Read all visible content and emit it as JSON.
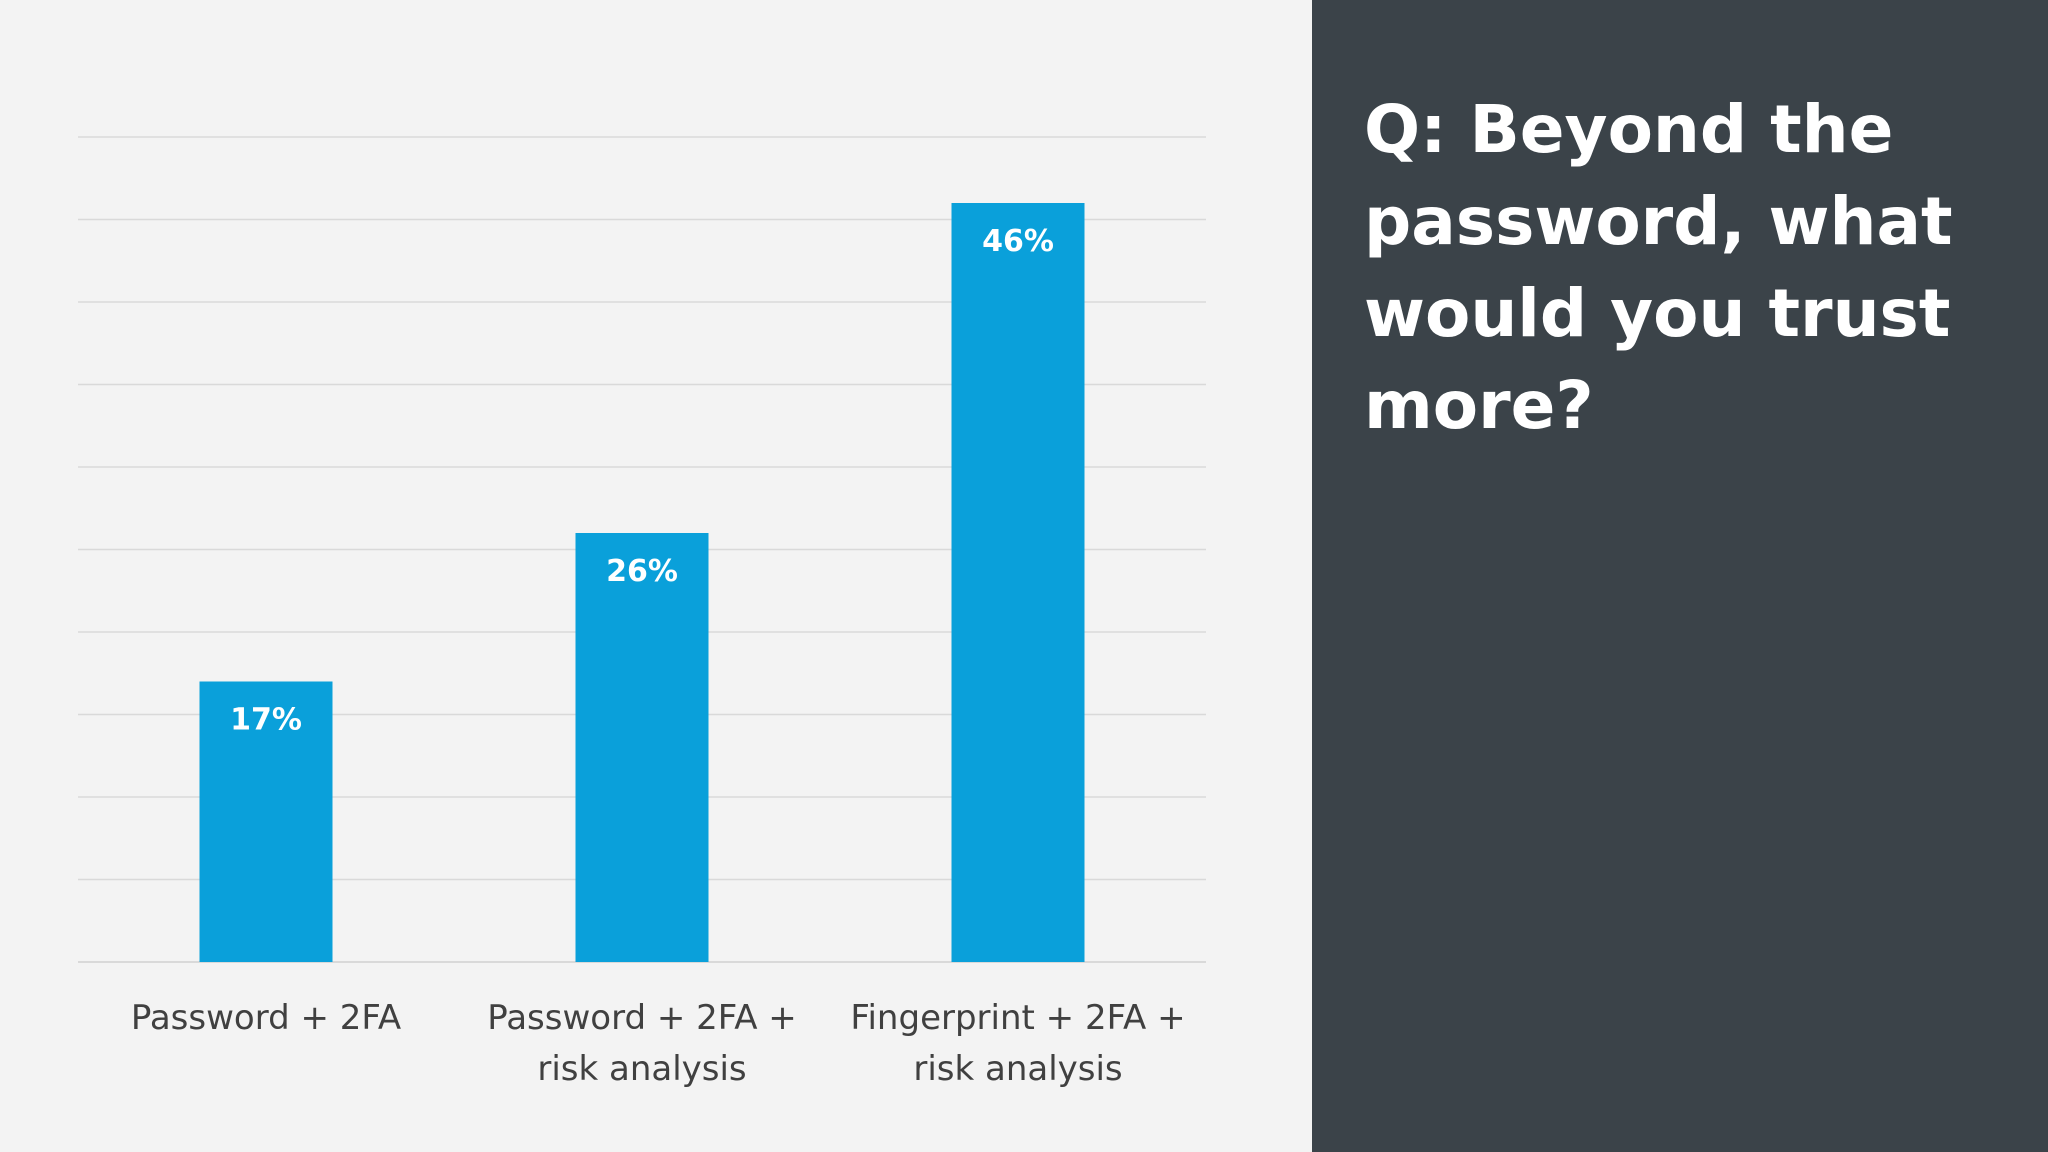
{
  "question": {
    "lines": [
      "Q: Beyond the",
      "password, what",
      "would you trust",
      "more?"
    ]
  },
  "colors": {
    "bar": "#0aa0da",
    "chart_background": "#f3f3f3",
    "panel_background": "#3b4349",
    "gridline": "#d9d9d9",
    "category_label": "#404040",
    "data_label": "#ffffff",
    "question_text": "#ffffff"
  },
  "chart_data": {
    "type": "bar",
    "title": "",
    "xlabel": "",
    "ylabel": "",
    "ylim": [
      0,
      50
    ],
    "grid": true,
    "gridline_step": 5,
    "legend": "none",
    "categories": [
      [
        "Password + 2FA"
      ],
      [
        "Password + 2FA  +",
        "risk analysis"
      ],
      [
        "Fingerprint + 2FA  +",
        "risk analysis"
      ]
    ],
    "values": [
      17,
      26,
      46
    ],
    "data_labels": [
      "17%",
      "26%",
      "46%"
    ]
  }
}
